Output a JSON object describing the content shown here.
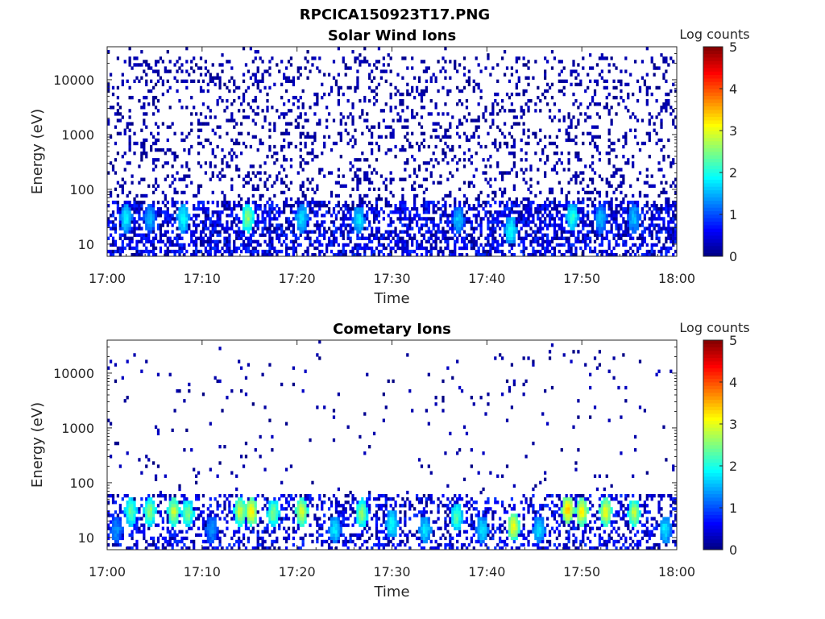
{
  "title": "RPCICA150923T17.PNG",
  "chart_data": [
    {
      "type": "heatmap",
      "title": "Solar Wind Ions",
      "xlabel": "Time",
      "ylabel": "Energy (eV)",
      "x_ticks": [
        "17:00",
        "17:10",
        "17:20",
        "17:30",
        "17:40",
        "17:50",
        "18:00"
      ],
      "x_range_min": [
        0,
        60
      ],
      "y_ticks": [
        "10",
        "100",
        "1000",
        "10000"
      ],
      "y_scale": "log",
      "y_range_eV": [
        6,
        40000
      ],
      "colorbar": {
        "label": "Log counts",
        "ticks": [
          "0",
          "1",
          "2",
          "3",
          "4",
          "5"
        ],
        "range": [
          0,
          5
        ],
        "colormap": "jet"
      },
      "features": [
        {
          "x": 2.0,
          "y": 30,
          "v": 1.9
        },
        {
          "x": 4.5,
          "y": 30,
          "v": 1.5
        },
        {
          "x": 8.0,
          "y": 30,
          "v": 2.0
        },
        {
          "x": 14.8,
          "y": 30,
          "v": 2.6
        },
        {
          "x": 20.5,
          "y": 30,
          "v": 1.8
        },
        {
          "x": 26.5,
          "y": 28,
          "v": 1.8
        },
        {
          "x": 37.0,
          "y": 28,
          "v": 1.6
        },
        {
          "x": 42.5,
          "y": 18,
          "v": 2.0
        },
        {
          "x": 49.0,
          "y": 32,
          "v": 2.1
        },
        {
          "x": 52.0,
          "y": 30,
          "v": 1.6
        },
        {
          "x": 55.5,
          "y": 30,
          "v": 1.6
        }
      ],
      "background": {
        "high_energy_density": 0.18,
        "low_energy_density": 0.55
      }
    },
    {
      "type": "heatmap",
      "title": "Cometary Ions",
      "xlabel": "Time",
      "ylabel": "Energy (eV)",
      "x_ticks": [
        "17:00",
        "17:10",
        "17:20",
        "17:30",
        "17:40",
        "17:50",
        "18:00"
      ],
      "x_range_min": [
        0,
        60
      ],
      "y_ticks": [
        "10",
        "100",
        "1000",
        "10000"
      ],
      "y_scale": "log",
      "y_range_eV": [
        6,
        40000
      ],
      "colorbar": {
        "label": "Log counts",
        "ticks": [
          "0",
          "1",
          "2",
          "3",
          "4",
          "5"
        ],
        "range": [
          0,
          5
        ],
        "colormap": "jet"
      },
      "features": [
        {
          "x": 1.0,
          "y": 14,
          "v": 1.4
        },
        {
          "x": 2.5,
          "y": 30,
          "v": 2.4
        },
        {
          "x": 4.5,
          "y": 30,
          "v": 2.6
        },
        {
          "x": 7.0,
          "y": 30,
          "v": 2.9
        },
        {
          "x": 8.5,
          "y": 28,
          "v": 2.5
        },
        {
          "x": 11.0,
          "y": 14,
          "v": 1.4
        },
        {
          "x": 14.0,
          "y": 30,
          "v": 2.9
        },
        {
          "x": 15.2,
          "y": 30,
          "v": 3.2
        },
        {
          "x": 17.5,
          "y": 28,
          "v": 2.5
        },
        {
          "x": 20.5,
          "y": 30,
          "v": 3.0
        },
        {
          "x": 24.0,
          "y": 14,
          "v": 1.8
        },
        {
          "x": 26.8,
          "y": 28,
          "v": 2.6
        },
        {
          "x": 30.0,
          "y": 18,
          "v": 2.0
        },
        {
          "x": 33.5,
          "y": 14,
          "v": 1.8
        },
        {
          "x": 36.8,
          "y": 24,
          "v": 2.3
        },
        {
          "x": 39.5,
          "y": 14,
          "v": 1.8
        },
        {
          "x": 42.8,
          "y": 16,
          "v": 3.1
        },
        {
          "x": 45.5,
          "y": 14,
          "v": 1.8
        },
        {
          "x": 48.5,
          "y": 32,
          "v": 3.4
        },
        {
          "x": 50.0,
          "y": 30,
          "v": 3.2
        },
        {
          "x": 52.5,
          "y": 30,
          "v": 3.1
        },
        {
          "x": 55.5,
          "y": 28,
          "v": 2.8
        },
        {
          "x": 58.8,
          "y": 14,
          "v": 1.8
        }
      ],
      "background": {
        "high_energy_density": 0.02,
        "low_energy_density": 0.35
      }
    }
  ]
}
